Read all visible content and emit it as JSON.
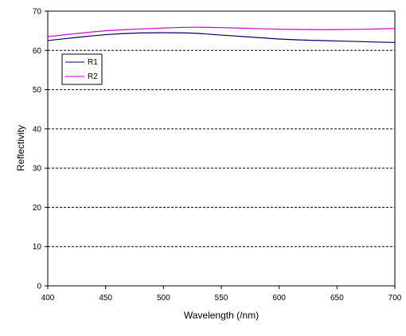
{
  "chart_data": {
    "type": "line",
    "title": "",
    "xlabel": "Wavelength (/nm)",
    "ylabel": "Reflectivity",
    "xlim": [
      400,
      700
    ],
    "ylim": [
      0,
      70
    ],
    "x_ticks": [
      400,
      450,
      500,
      550,
      600,
      650,
      700
    ],
    "y_ticks": [
      0,
      10,
      20,
      30,
      40,
      50,
      60,
      70
    ],
    "grid": "horizontal-dashed",
    "legend_position": "top-left",
    "x": [
      400,
      425,
      450,
      475,
      500,
      525,
      550,
      575,
      600,
      625,
      650,
      675,
      700
    ],
    "series": [
      {
        "name": "R1",
        "color": "#000066",
        "values": [
          62.5,
          63.3,
          64.0,
          64.4,
          64.5,
          64.4,
          63.9,
          63.4,
          62.9,
          62.6,
          62.4,
          62.2,
          62.0
        ]
      },
      {
        "name": "R2",
        "color": "#cc00cc",
        "values": [
          63.5,
          64.3,
          65.0,
          65.4,
          65.7,
          65.9,
          65.8,
          65.6,
          65.4,
          65.3,
          65.3,
          65.4,
          65.6
        ]
      }
    ]
  }
}
